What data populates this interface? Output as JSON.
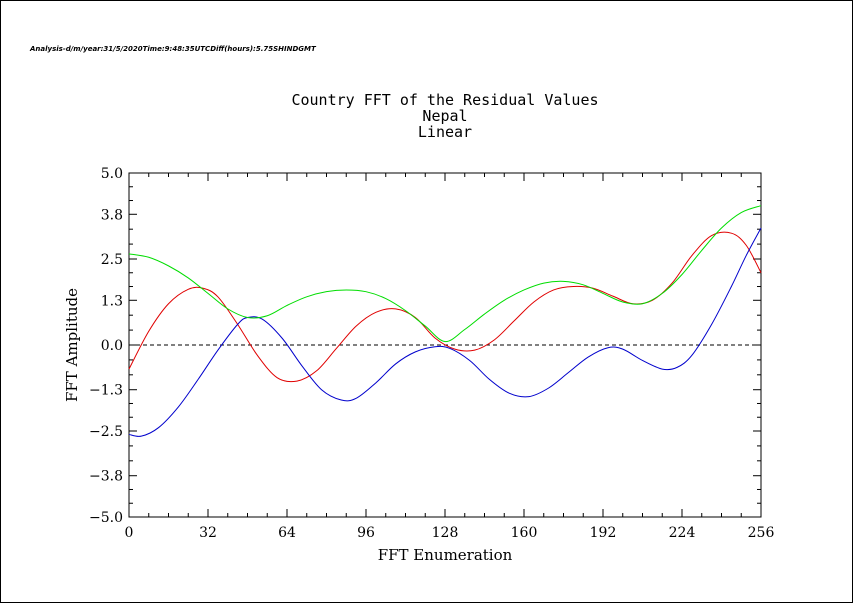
{
  "header": {
    "meta_line": "Analysis-d/m/year:31/5/2020Time:9:48:35UTCDiff(hours):5.75SHINDGMT"
  },
  "chart_data": {
    "type": "line",
    "title": "Country FFT of the Residual Values",
    "subtitle": "Nepal",
    "subtitle2": "Linear",
    "xlabel": "FFT Enumeration",
    "ylabel": "FFT Amplitude",
    "xlim": [
      0,
      256
    ],
    "ylim": [
      -5.0,
      5.0
    ],
    "xticks": [
      0,
      32,
      64,
      96,
      128,
      160,
      192,
      224,
      256
    ],
    "yticks": [
      5.0,
      3.8,
      2.5,
      1.3,
      0.0,
      -1.3,
      -2.5,
      -3.8,
      -5.0
    ],
    "ytick_labels": [
      "5.0",
      "3.8",
      "2.5",
      "1.3",
      "0.0",
      "−1.3",
      "−2.5",
      "−3.8",
      "−5.0"
    ],
    "zero_line": true,
    "series": [
      {
        "color": "#e00000",
        "x": [
          0,
          8,
          16,
          24,
          30,
          36,
          44,
          52,
          60,
          68,
          76,
          84,
          92,
          100,
          108,
          116,
          124,
          132,
          140,
          148,
          156,
          164,
          172,
          180,
          188,
          196,
          204,
          212,
          220,
          228,
          236,
          244,
          250,
          256
        ],
        "y": [
          -0.7,
          0.4,
          1.2,
          1.62,
          1.65,
          1.4,
          0.6,
          -0.3,
          -0.95,
          -1.05,
          -0.75,
          -0.1,
          0.55,
          0.95,
          1.05,
          0.8,
          0.2,
          -0.12,
          -0.15,
          0.15,
          0.7,
          1.25,
          1.6,
          1.7,
          1.65,
          1.42,
          1.2,
          1.3,
          1.8,
          2.6,
          3.18,
          3.25,
          2.9,
          2.1
        ]
      },
      {
        "color": "#0000cc",
        "x": [
          0,
          5,
          12,
          20,
          28,
          36,
          44,
          48,
          54,
          62,
          70,
          78,
          86,
          92,
          100,
          108,
          116,
          124,
          130,
          138,
          146,
          154,
          162,
          170,
          178,
          186,
          194,
          200,
          208,
          216,
          222,
          228,
          236,
          244,
          250,
          256
        ],
        "y": [
          -2.6,
          -2.65,
          -2.4,
          -1.8,
          -1.0,
          -0.15,
          0.6,
          0.8,
          0.75,
          0.2,
          -0.6,
          -1.3,
          -1.6,
          -1.55,
          -1.1,
          -0.55,
          -0.2,
          -0.05,
          -0.1,
          -0.45,
          -1.0,
          -1.4,
          -1.5,
          -1.25,
          -0.8,
          -0.35,
          -0.08,
          -0.12,
          -0.45,
          -0.7,
          -0.65,
          -0.3,
          0.6,
          1.7,
          2.6,
          3.4
        ]
      },
      {
        "color": "#00dd00",
        "x": [
          0,
          8,
          16,
          24,
          32,
          40,
          48,
          56,
          64,
          72,
          80,
          88,
          96,
          104,
          112,
          120,
          128,
          136,
          144,
          152,
          160,
          168,
          176,
          184,
          192,
          200,
          208,
          216,
          224,
          232,
          240,
          248,
          256
        ],
        "y": [
          2.65,
          2.55,
          2.3,
          1.95,
          1.5,
          1.05,
          0.8,
          0.85,
          1.15,
          1.4,
          1.55,
          1.6,
          1.55,
          1.35,
          1.0,
          0.55,
          0.1,
          0.45,
          0.9,
          1.3,
          1.6,
          1.8,
          1.85,
          1.75,
          1.5,
          1.25,
          1.2,
          1.5,
          2.05,
          2.75,
          3.4,
          3.85,
          4.05
        ]
      }
    ]
  }
}
